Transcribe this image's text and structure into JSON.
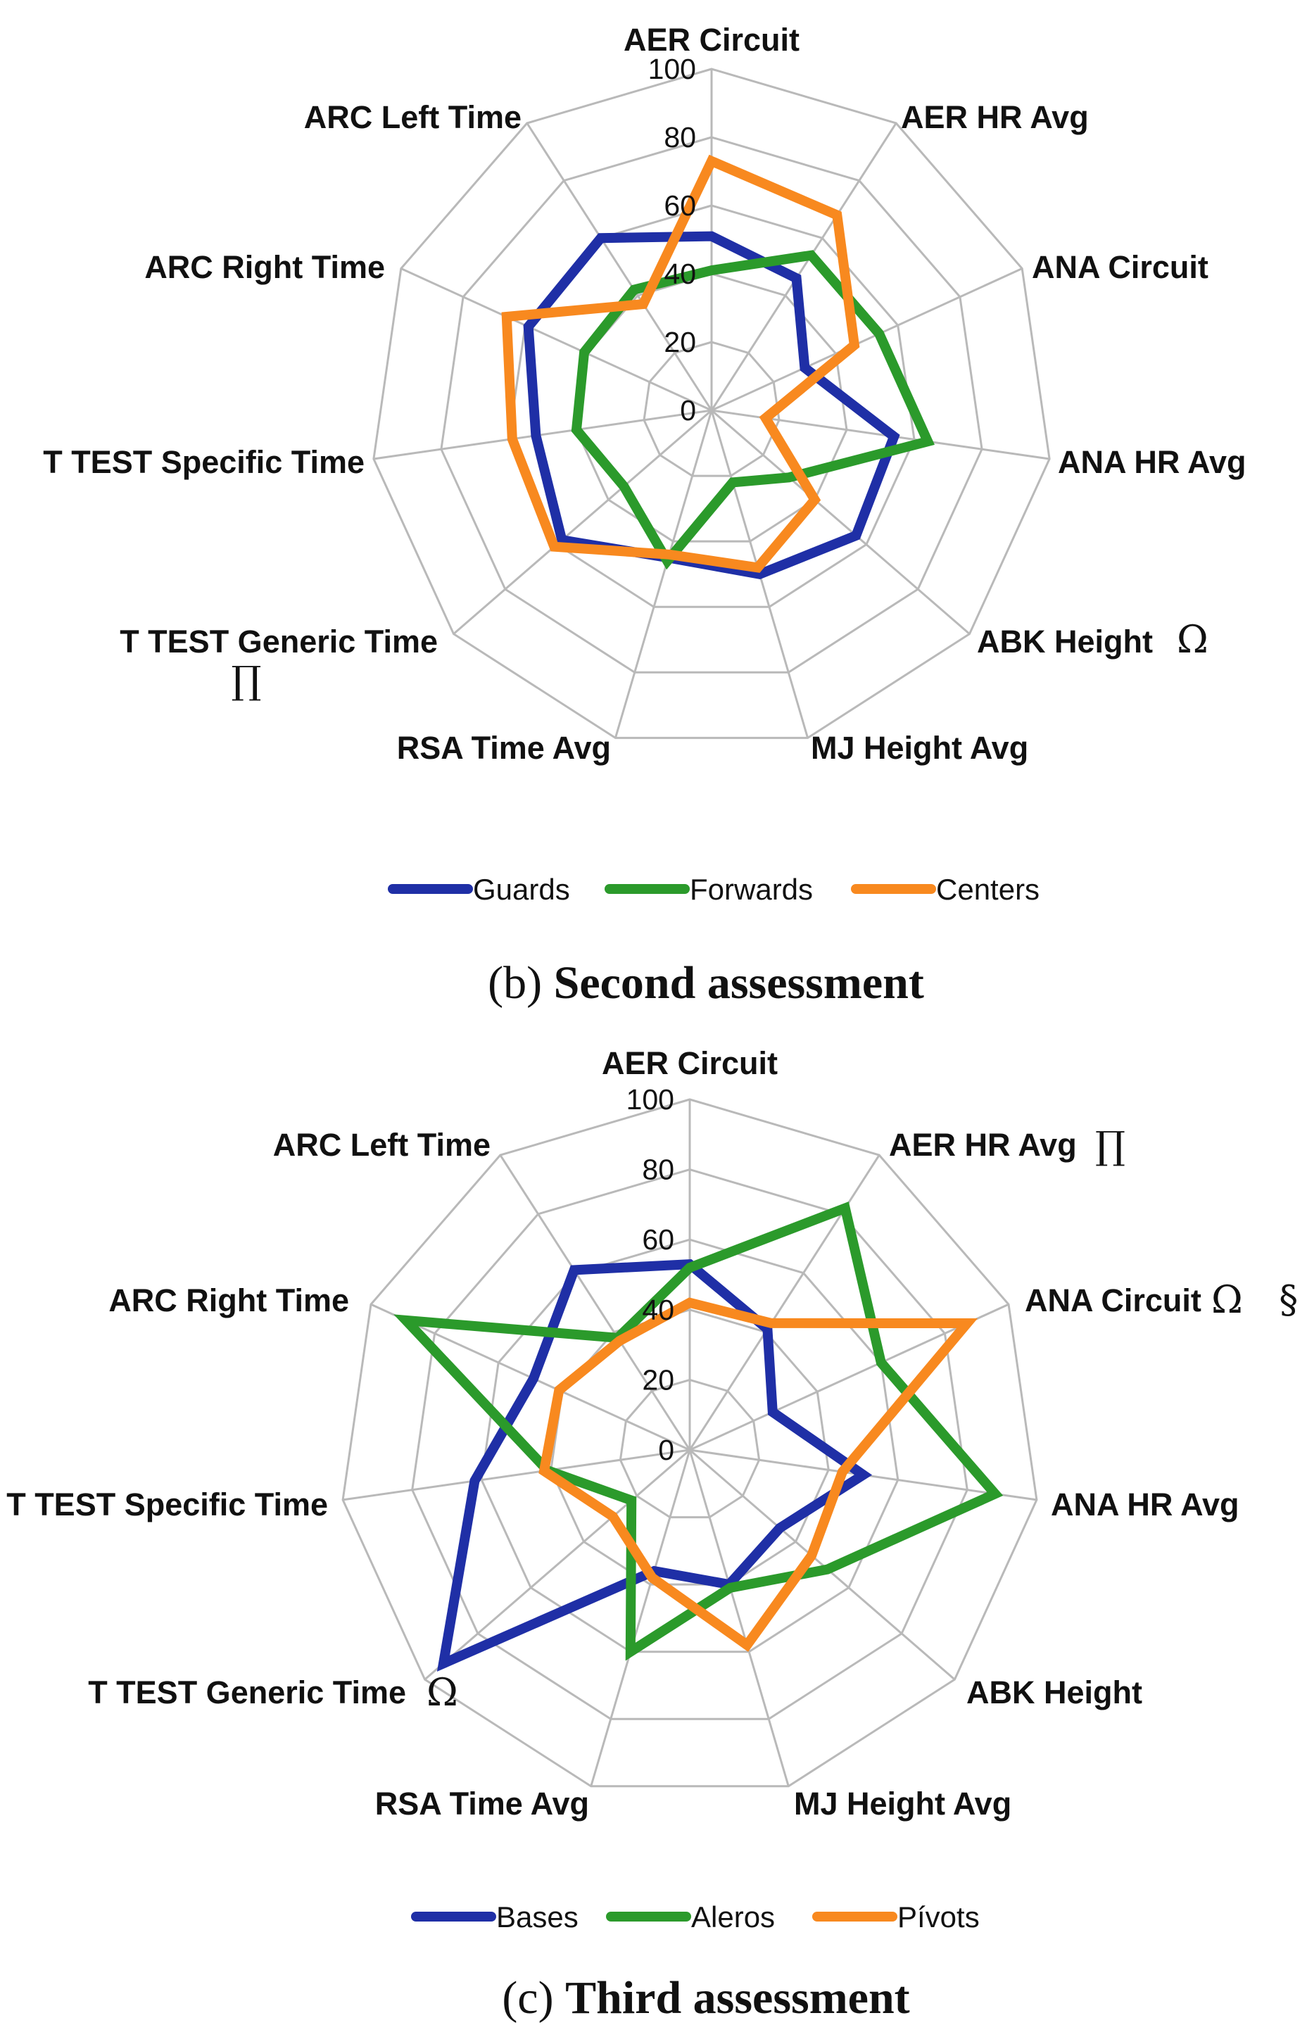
{
  "chart_data": [
    {
      "id": "second",
      "type": "radar",
      "caption_letter": "(b)",
      "caption_text": "Second assessment",
      "rlim": [
        0,
        100
      ],
      "ticks": [
        "0",
        "20",
        "40",
        "60",
        "80",
        "100"
      ],
      "axes": [
        "AER Circuit",
        "AER HR Avg",
        "ANA Circuit",
        "ANA HR Avg",
        "ABK Height",
        "MJ Height Avg",
        "RSA Time Avg",
        "T TEST Generic Time",
        "T TEST Specific Time",
        "ARC Right Time",
        "ARC Left Time"
      ],
      "axis_markers": [
        "",
        "",
        "",
        "",
        "Ω",
        "",
        "",
        "∏",
        "",
        "",
        ""
      ],
      "series": [
        {
          "name": "Guards",
          "color": "#1f2fa6",
          "values": [
            51,
            46,
            30,
            54,
            56,
            50,
            45,
            58,
            52,
            59,
            60
          ]
        },
        {
          "name": "Forwards",
          "color": "#2b9a2b",
          "values": [
            41,
            54,
            54,
            64,
            30,
            22,
            46,
            34,
            40,
            41,
            42
          ]
        },
        {
          "name": "Centers",
          "color": "#f8891f",
          "values": [
            73,
            68,
            46,
            16,
            40,
            48,
            44,
            61,
            59,
            66,
            37
          ]
        }
      ],
      "legend": [
        "Guards",
        "Forwards",
        "Centers"
      ]
    },
    {
      "id": "third",
      "type": "radar",
      "caption_letter": "(c)",
      "caption_text": "Third assessment",
      "rlim": [
        0,
        100
      ],
      "ticks": [
        "0",
        "20",
        "40",
        "60",
        "80",
        "100"
      ],
      "axes": [
        "AER Circuit",
        "AER HR Avg",
        "ANA Circuit",
        "ANA HR Avg",
        "ABK Height",
        "MJ Height Avg",
        "RSA Time Avg",
        "T TEST Generic Time",
        "T TEST Specific Time",
        "ARC Right Time",
        "ARC Left Time"
      ],
      "axis_markers": [
        "",
        "∏",
        "Ω   §",
        "",
        "",
        "",
        "",
        "Ω",
        "",
        "",
        ""
      ],
      "series": [
        {
          "name": "Bases",
          "color": "#1f2fa6",
          "values": [
            53,
            41,
            26,
            50,
            34,
            40,
            36,
            93,
            62,
            49,
            61
          ]
        },
        {
          "name": "Aleros",
          "color": "#2b9a2b",
          "values": [
            52,
            82,
            60,
            88,
            52,
            41,
            60,
            22,
            41,
            89,
            38
          ]
        },
        {
          "name": "Pívots",
          "color": "#f8891f",
          "values": [
            42,
            43,
            87,
            44,
            46,
            58,
            38,
            29,
            42,
            41,
            37
          ]
        }
      ],
      "legend": [
        "Bases",
        "Aleros",
        "Pívots"
      ]
    }
  ]
}
